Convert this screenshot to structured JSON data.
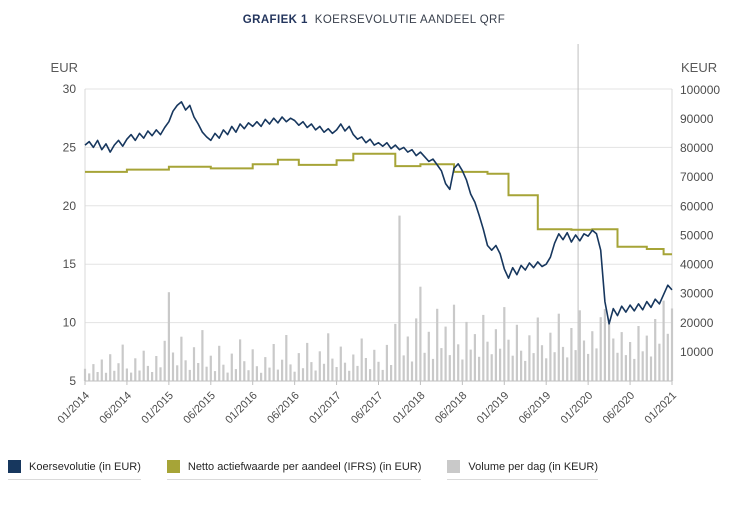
{
  "header": {
    "label": "GRAFIEK 1",
    "title": "KOERSEVOLUTIE AANDEEL QRF"
  },
  "legend": {
    "items": [
      {
        "label": "Koersevolutie (in EUR)",
        "color": "#17375E"
      },
      {
        "label": "Netto actiefwaarde per aandeel (IFRS) (in EUR)",
        "color": "#A6A437"
      },
      {
        "label": "Volume per dag (in KEUR)",
        "color": "#C9C9C9"
      }
    ]
  },
  "chart_data": {
    "type": "combo",
    "title": "GRAFIEK 1 KOERSEVOLUTIE AANDEEL QRF",
    "grid": true,
    "legend_position": "bottom",
    "left_axis": {
      "label": "EUR",
      "ticks": [
        5,
        10,
        15,
        20,
        25,
        30
      ],
      "range": [
        5,
        30
      ]
    },
    "right_axis": {
      "label": "KEUR",
      "ticks": [
        10000,
        20000,
        30000,
        40000,
        50000,
        60000,
        70000,
        80000,
        90000,
        100000
      ],
      "range": [
        0,
        100300
      ]
    },
    "x_axis": {
      "range": [
        2014.0,
        2021.0
      ],
      "tick_years": [
        2014,
        2014.5,
        2015,
        2015.5,
        2016,
        2016.5,
        2017,
        2017.5,
        2018,
        2018.5,
        2019,
        2019.5,
        2020,
        2020.5,
        2021
      ],
      "tick_labels": [
        "01/2014",
        "06/2014",
        "01/2015",
        "06/2015",
        "01/2016",
        "06/2016",
        "01/2017",
        "06/2017",
        "01/2018",
        "06/2018",
        "01/2019",
        "06/2019",
        "01/2020",
        "06/2020",
        "01/2021"
      ]
    },
    "annotation": {
      "type": "vertical-line",
      "x_year": 2019.88
    },
    "x": {
      "start": 2014.0,
      "step": 0.05,
      "count": 141,
      "unit": "decimal year"
    },
    "series": [
      {
        "name": "Koersevolutie (in EUR)",
        "type": "line",
        "axis": "left",
        "color": "#17375E",
        "y": [
          25.2,
          25.5,
          25.0,
          25.6,
          24.8,
          25.3,
          24.6,
          25.2,
          25.6,
          25.1,
          25.7,
          26.1,
          25.6,
          26.2,
          25.8,
          26.4,
          26.0,
          26.5,
          26.1,
          26.7,
          27.2,
          28.1,
          28.6,
          28.9,
          28.2,
          28.6,
          27.6,
          27.0,
          26.3,
          25.9,
          25.6,
          26.2,
          25.8,
          26.5,
          26.1,
          26.8,
          26.3,
          27.0,
          26.6,
          27.1,
          26.8,
          27.2,
          26.8,
          27.4,
          27.0,
          27.5,
          27.1,
          27.6,
          27.2,
          27.5,
          27.3,
          26.9,
          27.2,
          26.7,
          27.0,
          26.5,
          26.8,
          26.3,
          26.6,
          26.2,
          26.5,
          27.0,
          26.4,
          26.8,
          26.1,
          25.7,
          25.9,
          25.4,
          25.7,
          25.2,
          25.4,
          25.1,
          25.4,
          24.9,
          25.2,
          24.8,
          25.0,
          24.6,
          24.8,
          24.3,
          24.6,
          24.2,
          23.8,
          24.0,
          23.5,
          23.0,
          21.9,
          21.4,
          23.2,
          23.6,
          23.0,
          22.2,
          21.0,
          20.3,
          19.2,
          18.0,
          16.6,
          16.2,
          16.6,
          15.9,
          14.6,
          13.8,
          14.7,
          14.1,
          14.9,
          14.5,
          15.1,
          14.7,
          15.2,
          14.8,
          15.0,
          15.6,
          16.8,
          17.6,
          17.1,
          17.7,
          16.9,
          17.5,
          17.0,
          17.6,
          17.4,
          17.9,
          17.6,
          16.2,
          11.8,
          9.9,
          11.2,
          10.6,
          11.4,
          10.9,
          11.5,
          11.0,
          11.6,
          11.1,
          11.8,
          11.3,
          12.0,
          11.6,
          12.4,
          13.2,
          12.8
        ]
      },
      {
        "name": "Netto actiefwaarde per aandeel (IFRS) (in EUR)",
        "type": "step-line",
        "axis": "left",
        "color": "#A6A437",
        "points": [
          [
            2014.0,
            22.9
          ],
          [
            2014.5,
            23.1
          ],
          [
            2015.0,
            23.35
          ],
          [
            2015.5,
            23.2
          ],
          [
            2016.0,
            23.55
          ],
          [
            2016.3,
            23.95
          ],
          [
            2016.55,
            23.5
          ],
          [
            2017.0,
            23.9
          ],
          [
            2017.2,
            24.45
          ],
          [
            2017.7,
            23.4
          ],
          [
            2018.0,
            23.55
          ],
          [
            2018.4,
            22.9
          ],
          [
            2018.8,
            22.75
          ],
          [
            2019.05,
            20.9
          ],
          [
            2019.4,
            18.0
          ],
          [
            2019.8,
            17.95
          ],
          [
            2020.05,
            18.0
          ],
          [
            2020.35,
            16.5
          ],
          [
            2020.7,
            16.3
          ],
          [
            2020.9,
            15.85
          ],
          [
            2021.0,
            15.85
          ]
        ]
      },
      {
        "name": "Volume per dag (in KEUR)",
        "type": "bar",
        "axis": "right",
        "color": "#C9C9C9",
        "y": [
          4200,
          2600,
          5800,
          3100,
          7400,
          2800,
          9200,
          3500,
          6100,
          12500,
          4300,
          2900,
          7800,
          3600,
          10400,
          5200,
          3100,
          8600,
          4700,
          13800,
          30500,
          9800,
          5400,
          15200,
          7100,
          3800,
          11600,
          6200,
          17500,
          4900,
          8700,
          3400,
          12100,
          5600,
          2900,
          9400,
          4100,
          14300,
          6800,
          3700,
          10900,
          5100,
          2800,
          8200,
          4600,
          12700,
          3900,
          7300,
          15800,
          5700,
          3200,
          9600,
          4400,
          13100,
          6500,
          3600,
          10200,
          5900,
          16400,
          7700,
          4800,
          11800,
          6300,
          3500,
          9100,
          5200,
          14600,
          7900,
          4100,
          10700,
          6600,
          3800,
          12400,
          5500,
          19600,
          56800,
          8800,
          15300,
          6700,
          21500,
          32400,
          9700,
          16900,
          7600,
          24800,
          11300,
          18700,
          8900,
          26200,
          12600,
          7400,
          20300,
          10800,
          16100,
          8300,
          22700,
          13500,
          9200,
          17800,
          11100,
          25400,
          14200,
          8700,
          19300,
          10400,
          6900,
          15700,
          9600,
          21800,
          12300,
          7800,
          16600,
          9900,
          23100,
          11700,
          8100,
          18200,
          10600,
          24300,
          13900,
          9300,
          17100,
          11200,
          21900,
          24700,
          19800,
          14600,
          9700,
          16800,
          8900,
          13400,
          7600,
          18900,
          10200,
          15600,
          8400,
          21300,
          12800,
          27600,
          16200,
          24900
        ]
      }
    ]
  }
}
